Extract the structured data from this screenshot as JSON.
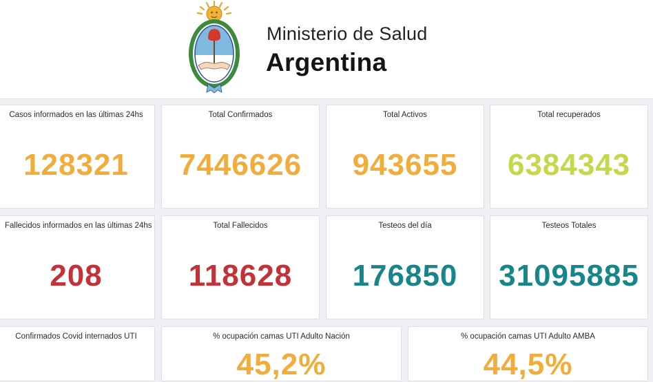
{
  "header": {
    "brand_line1": "Ministerio de Salud",
    "brand_line2": "Argentina",
    "crest_icon": "escudo-nacional-argentina"
  },
  "cards": [
    {
      "title": "Casos informados en las últimas 24hs",
      "value": "128321",
      "color": "#f0ad3c"
    },
    {
      "title": "Total Confirmados",
      "value": "7446626",
      "color": "#f0ad3c"
    },
    {
      "title": "Total Activos",
      "value": "943655",
      "color": "#f0ad3c"
    },
    {
      "title": "Total recuperados",
      "value": "6384343",
      "color": "#c5d84a"
    },
    {
      "title": "Fallecidos informados en las últimas 24hs",
      "value": "208",
      "color": "#c43136"
    },
    {
      "title": "Total Fallecidos",
      "value": "118628",
      "color": "#c43136"
    },
    {
      "title": "Testeos del día",
      "value": "176850",
      "color": "#17868a"
    },
    {
      "title": "Testeos Totales",
      "value": "31095885",
      "color": "#17868a"
    },
    {
      "title": "Confirmados Covid internados UTI",
      "value": "",
      "color": "#f0ad3c"
    },
    {
      "title": "% ocupación camas UTI Adulto Nación",
      "value": "45,2%",
      "color": "#f0ad3c"
    },
    {
      "title": "% ocupación camas UTI Adulto AMBA",
      "value": "44,5%",
      "color": "#f0ad3c"
    }
  ]
}
